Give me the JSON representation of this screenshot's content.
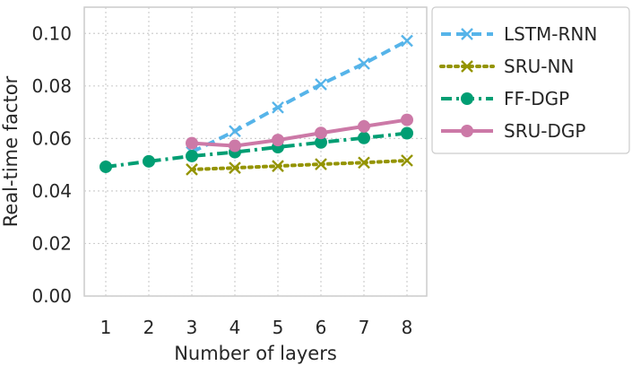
{
  "chart_data": {
    "type": "line",
    "xlabel": "Number of layers",
    "ylabel": "Real-time factor",
    "x_ticks": [
      1,
      2,
      3,
      4,
      5,
      6,
      7,
      8
    ],
    "y_ticks": [
      "0.00",
      "0.02",
      "0.04",
      "0.06",
      "0.08",
      "0.10"
    ],
    "xlim": [
      0.5,
      8.5
    ],
    "ylim": [
      0,
      0.11
    ],
    "grid": true,
    "grid_style": "dotted",
    "legend_placement": "outside-right-top",
    "series": [
      {
        "name": "LSTM-RNN",
        "color": "#56B4E9",
        "line_style": "dashed",
        "marker": "x",
        "x": [
          3,
          4,
          5,
          6,
          7,
          8
        ],
        "values": [
          0.0548,
          0.0628,
          0.0718,
          0.0806,
          0.0885,
          0.0972
        ]
      },
      {
        "name": "SRU-NN",
        "color": "#949400",
        "line_style": "dotted",
        "marker": "x",
        "x": [
          3,
          4,
          5,
          6,
          7,
          8
        ],
        "values": [
          0.0482,
          0.0488,
          0.0495,
          0.0502,
          0.0508,
          0.0516
        ]
      },
      {
        "name": "FF-DGP",
        "color": "#009E73",
        "line_style": "dashdot",
        "marker": "circle",
        "x": [
          1,
          2,
          3,
          4,
          5,
          6,
          7,
          8
        ],
        "values": [
          0.0492,
          0.0513,
          0.0533,
          0.0548,
          0.0567,
          0.0585,
          0.0602,
          0.062
        ]
      },
      {
        "name": "SRU-DGP",
        "color": "#CC79A7",
        "line_style": "solid",
        "marker": "circle",
        "x": [
          3,
          4,
          5,
          6,
          7,
          8
        ],
        "values": [
          0.0582,
          0.0572,
          0.0594,
          0.0621,
          0.0646,
          0.0671
        ]
      }
    ]
  }
}
